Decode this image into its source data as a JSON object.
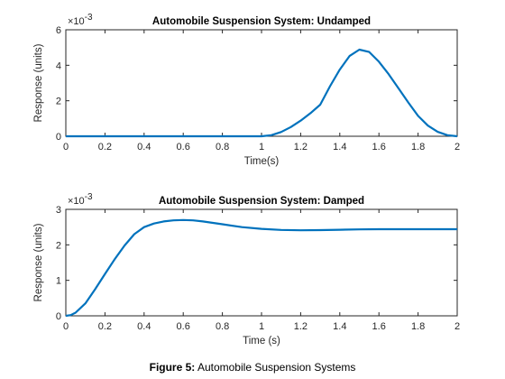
{
  "figure": {
    "caption_label": "Figure 5:",
    "caption_text": "Automobile Suspension Systems"
  },
  "colors": {
    "line": "#0072BD",
    "axis": "#262626"
  },
  "chart_data": [
    {
      "type": "line",
      "title": "Automobile Suspension System: Undamped",
      "xlabel": "Time(s)",
      "ylabel": "Response (units)",
      "exponent_label": "×10",
      "exponent_power": "-3",
      "xlim": [
        0,
        2
      ],
      "ylim": [
        0,
        6
      ],
      "xticks": [
        0,
        0.2,
        0.4,
        0.6,
        0.8,
        1,
        1.2,
        1.4,
        1.6,
        1.8,
        2
      ],
      "xtick_labels": [
        "0",
        "0.2",
        "0.4",
        "0.6",
        "0.8",
        "1",
        "1.2",
        "1.4",
        "1.6",
        "1.8",
        "2"
      ],
      "yticks": [
        0,
        2,
        4,
        6
      ],
      "ytick_labels": [
        "0",
        "2",
        "4",
        "6"
      ],
      "grid": false,
      "series": [
        {
          "x": [
            0,
            0.5,
            1.0,
            1.05,
            1.1,
            1.15,
            1.2,
            1.25,
            1.3,
            1.35,
            1.4,
            1.45,
            1.5,
            1.55,
            1.6,
            1.65,
            1.7,
            1.75,
            1.8,
            1.85,
            1.9,
            1.95,
            2.0
          ],
          "y": [
            0,
            0,
            0,
            0.06,
            0.24,
            0.52,
            0.88,
            1.3,
            1.78,
            2.82,
            3.76,
            4.52,
            4.88,
            4.75,
            4.2,
            3.5,
            2.7,
            1.9,
            1.15,
            0.6,
            0.25,
            0.06,
            0
          ]
        }
      ]
    },
    {
      "type": "line",
      "title": "Automobile Suspension System: Damped",
      "xlabel": "Time (s)",
      "ylabel": "Response (units)",
      "exponent_label": "×10",
      "exponent_power": "-3",
      "xlim": [
        0,
        2
      ],
      "ylim": [
        0,
        3
      ],
      "xticks": [
        0,
        0.2,
        0.4,
        0.6,
        0.8,
        1,
        1.2,
        1.4,
        1.6,
        1.8,
        2
      ],
      "xtick_labels": [
        "0",
        "0.2",
        "0.4",
        "0.6",
        "0.8",
        "1",
        "1.2",
        "1.4",
        "1.6",
        "1.8",
        "2"
      ],
      "yticks": [
        0,
        1,
        2,
        3
      ],
      "ytick_labels": [
        "0",
        "1",
        "2",
        "3"
      ],
      "grid": false,
      "series": [
        {
          "x": [
            0,
            0.025,
            0.05,
            0.1,
            0.15,
            0.2,
            0.25,
            0.3,
            0.35,
            0.4,
            0.45,
            0.5,
            0.55,
            0.6,
            0.65,
            0.7,
            0.8,
            0.9,
            1.0,
            1.1,
            1.2,
            1.3,
            1.4,
            1.5,
            1.6,
            1.8,
            2.0
          ],
          "y": [
            0,
            0.02,
            0.09,
            0.35,
            0.75,
            1.18,
            1.6,
            1.98,
            2.3,
            2.5,
            2.6,
            2.66,
            2.69,
            2.7,
            2.69,
            2.66,
            2.58,
            2.5,
            2.45,
            2.42,
            2.41,
            2.415,
            2.425,
            2.435,
            2.44,
            2.44,
            2.44
          ]
        }
      ]
    }
  ]
}
